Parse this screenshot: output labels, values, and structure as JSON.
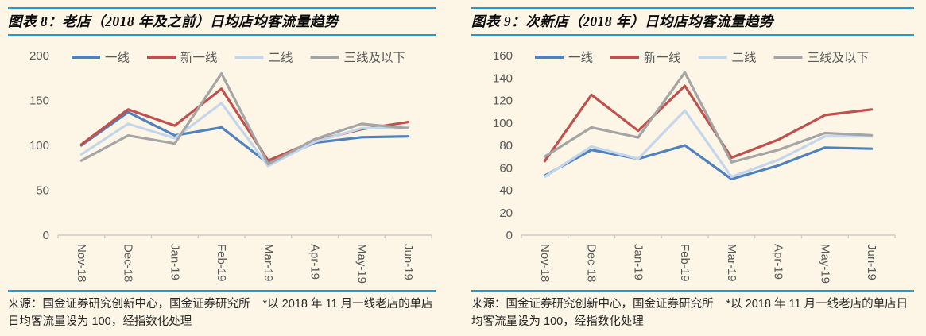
{
  "colors": {
    "background": "#fdf6e6",
    "rule_blue": "#1e9bd7",
    "axis_text": "#595959",
    "axis_line": "#cfccc2",
    "title_text": "#0a0a0a",
    "footer_text": "#262626"
  },
  "panels": [
    {
      "title": "图表 8：老店（2018 年及之前）日均店均客流量趋势",
      "source": "来源：国金证券研究创新中心，国金证券研究所",
      "note": "*以 2018 年 11 月一线老店的单店日均客流量设为 100，经指数化处理"
    },
    {
      "title": "图表 9：次新店（2018 年）日均店均客流量趋势",
      "source": "来源：国金证券研究创新中心，国金证券研究所",
      "note": "*以 2018 年 11 月一线老店的单店日均客流量设为 100，经指数化处理"
    }
  ],
  "chart_data": [
    {
      "type": "line",
      "title": "图表 8：老店（2018 年及之前）日均店均客流量趋势",
      "categories": [
        "Nov-18",
        "Dec-18",
        "Jan-19",
        "Feb-19",
        "Mar-19",
        "Apr-19",
        "May-19",
        "Jun-19"
      ],
      "series": [
        {
          "name": "一线",
          "color": "#4f81bd",
          "values": [
            100,
            137,
            111,
            120,
            80,
            103,
            109,
            110
          ]
        },
        {
          "name": "新一线",
          "color": "#c0504d",
          "values": [
            101,
            140,
            122,
            163,
            83,
            105,
            118,
            126
          ]
        },
        {
          "name": "二线",
          "color": "#c3d6ec",
          "values": [
            90,
            124,
            108,
            147,
            77,
            104,
            119,
            120
          ]
        },
        {
          "name": "三线及以下",
          "color": "#a5a5a5",
          "values": [
            83,
            111,
            102,
            180,
            79,
            107,
            124,
            119
          ]
        }
      ],
      "xlabel": "",
      "ylabel": "",
      "ylim": [
        0,
        200
      ],
      "ytick_step": 50,
      "grid": false,
      "legend_position": "top"
    },
    {
      "type": "line",
      "title": "图表 9：次新店（2018 年）日均店均客流量趋势",
      "categories": [
        "Nov-18",
        "Dec-18",
        "Jan-19",
        "Feb-19",
        "Mar-19",
        "Apr-19",
        "May-19",
        "Jun-19"
      ],
      "series": [
        {
          "name": "一线",
          "color": "#4f81bd",
          "values": [
            53,
            76,
            68,
            80,
            50,
            62,
            78,
            77
          ]
        },
        {
          "name": "新一线",
          "color": "#c0504d",
          "values": [
            66,
            125,
            93,
            133,
            69,
            85,
            107,
            112
          ]
        },
        {
          "name": "二线",
          "color": "#c3d6ec",
          "values": [
            52,
            79,
            68,
            111,
            52,
            67,
            88,
            88
          ]
        },
        {
          "name": "三线及以下",
          "color": "#a5a5a5",
          "values": [
            70,
            96,
            87,
            145,
            65,
            76,
            91,
            89
          ]
        }
      ],
      "xlabel": "",
      "ylabel": "",
      "ylim": [
        0,
        160
      ],
      "ytick_step": 20,
      "grid": false,
      "legend_position": "top"
    }
  ]
}
